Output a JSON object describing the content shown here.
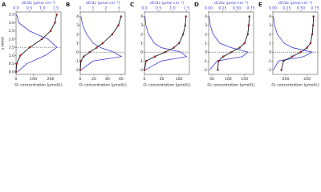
{
  "chart_data": [
    {
      "type": "profile",
      "panel": "A",
      "top_label": "dC/dz (μmol cm⁻⁴)",
      "bottom_label": "O₂ concentration (μmol/L)",
      "y_label": "z (mm)",
      "z": [
        3.5,
        3.0,
        2.5,
        2.0,
        1.5,
        1.0,
        0.5,
        0.0
      ],
      "o2_values": [
        235,
        225,
        200,
        150,
        80,
        25,
        3,
        0
      ],
      "dcdz_values": [
        0.02,
        0.1,
        0.5,
        1.2,
        1.55,
        1.1,
        0.4,
        0.05
      ],
      "ylim": [
        -0.15,
        3.65
      ],
      "yticks": [
        {
          "value": 0,
          "label": "0.0"
        },
        0.5,
        {
          "value": 1,
          "label": "1.0"
        },
        1.5,
        {
          "value": 2,
          "label": "2.0"
        },
        2.5,
        {
          "value": 3,
          "label": "3.0"
        },
        3.5
      ],
      "xlim": [
        0,
        260
      ],
      "xticks": [
        0,
        100,
        200
      ],
      "x2lim": [
        0,
        1.7
      ],
      "x2ticks": [
        {
          "value": 0,
          "label": "0.0"
        },
        0.5,
        {
          "value": 1,
          "label": "1.0"
        },
        1.5
      ],
      "dashed_z": 1.5,
      "o2_color": "#000000",
      "point_color": "#d62728",
      "dcdz_color": "#3b3bd6"
    },
    {
      "type": "profile",
      "panel": "B",
      "top_label": "dC/dz (μmol cm⁻⁴)",
      "bottom_label": "O₂ concentration (μmol/L)",
      "z": [
        4,
        3,
        2,
        1,
        0.5,
        0,
        -0.5,
        -1,
        -2
      ],
      "o2_values": [
        60,
        56,
        47,
        33,
        24,
        14,
        5,
        1,
        0
      ],
      "dcdz_values": [
        0.05,
        0.2,
        0.5,
        1.0,
        1.6,
        2.6,
        3.2,
        1.0,
        0.05
      ],
      "ylim": [
        -2.5,
        4.5
      ],
      "yticks": [
        -2,
        -1,
        0,
        1,
        2,
        3,
        4
      ],
      "xlim": [
        0,
        66
      ],
      "xticks": [
        0,
        20,
        40,
        60
      ],
      "x2lim": [
        0,
        3.5
      ],
      "x2ticks": [
        0,
        1,
        2,
        3
      ],
      "dashed_z": 0,
      "o2_color": "#000000",
      "point_color": "#d62728",
      "dcdz_color": "#3b3bd6"
    },
    {
      "type": "profile",
      "panel": "C",
      "top_label": "dC/dz (μmol cm⁻⁴)",
      "bottom_label": "O₂ concentration (μmol/L)",
      "z": [
        4,
        3,
        2,
        1,
        0.5,
        0,
        -0.5,
        -1,
        -2
      ],
      "o2_values": [
        120,
        118,
        112,
        100,
        85,
        60,
        30,
        5,
        0
      ],
      "dcdz_values": [
        0.02,
        0.05,
        0.15,
        0.35,
        0.6,
        1.3,
        1.5,
        0.6,
        0.02
      ],
      "ylim": [
        -2.5,
        4.5
      ],
      "yticks": [
        -2,
        -1,
        0,
        1,
        2,
        3,
        4
      ],
      "xlim": [
        0,
        130
      ],
      "xticks": [
        0,
        50,
        100
      ],
      "x2lim": [
        0,
        1.6
      ],
      "x2ticks": [
        {
          "value": 0,
          "label": "0.0"
        },
        0.5,
        {
          "value": 1,
          "label": "1.0"
        },
        1.5
      ],
      "dashed_z": 0,
      "o2_color": "#000000",
      "point_color": "#d62728",
      "dcdz_color": "#3b3bd6"
    },
    {
      "type": "profile",
      "panel": "D",
      "top_label": "dC/dz (μmol cm⁻⁴)",
      "bottom_label": "O₂ concentration (μmol/L)",
      "z": [
        4,
        3,
        2,
        1,
        0.5,
        0,
        -0.5,
        -1,
        -2
      ],
      "o2_values": [
        165,
        163,
        160,
        150,
        135,
        110,
        85,
        70,
        68
      ],
      "dcdz_values": [
        0.01,
        0.03,
        0.08,
        0.2,
        0.4,
        0.7,
        0.6,
        0.15,
        0.02
      ],
      "ylim": [
        -2.5,
        4.5
      ],
      "yticks": [
        -2,
        -1,
        0,
        1,
        2,
        3,
        4
      ],
      "xlim": [
        40,
        178
      ],
      "xticks": [
        50,
        100,
        150
      ],
      "x2lim": [
        0,
        0.8
      ],
      "x2ticks": [
        {
          "value": 0,
          "label": "0.00"
        },
        0.25,
        {
          "value": 0.5,
          "label": "0.50"
        },
        0.75
      ],
      "dashed_z": 0,
      "o2_color": "#000000",
      "point_color": "#d62728",
      "dcdz_color": "#3b3bd6"
    },
    {
      "type": "profile",
      "panel": "E",
      "top_label": "dC/dz (μmol cm⁻⁴)",
      "bottom_label": "O₂ concentration (μmol/L)",
      "z": [
        4,
        3,
        2,
        1,
        0.5,
        0,
        -0.5,
        -1,
        -2
      ],
      "o2_values": [
        265,
        264,
        262,
        258,
        250,
        235,
        215,
        195,
        190
      ],
      "dcdz_values": [
        0.01,
        0.03,
        0.08,
        0.2,
        0.35,
        0.7,
        0.55,
        0.1,
        0.01
      ],
      "ylim": [
        -2.5,
        4.5
      ],
      "yticks": [
        -2,
        -1,
        0,
        1,
        2,
        3,
        4
      ],
      "xlim": [
        170,
        275
      ],
      "xticks": [
        200,
        250
      ],
      "x2lim": [
        0,
        0.8
      ],
      "x2ticks": [
        {
          "value": 0,
          "label": "0.00"
        },
        0.25,
        {
          "value": 0.5,
          "label": "0.50"
        },
        0.75
      ],
      "dashed_z": 0,
      "o2_color": "#000000",
      "point_color": "#d62728",
      "dcdz_color": "#3b3bd6"
    }
  ]
}
